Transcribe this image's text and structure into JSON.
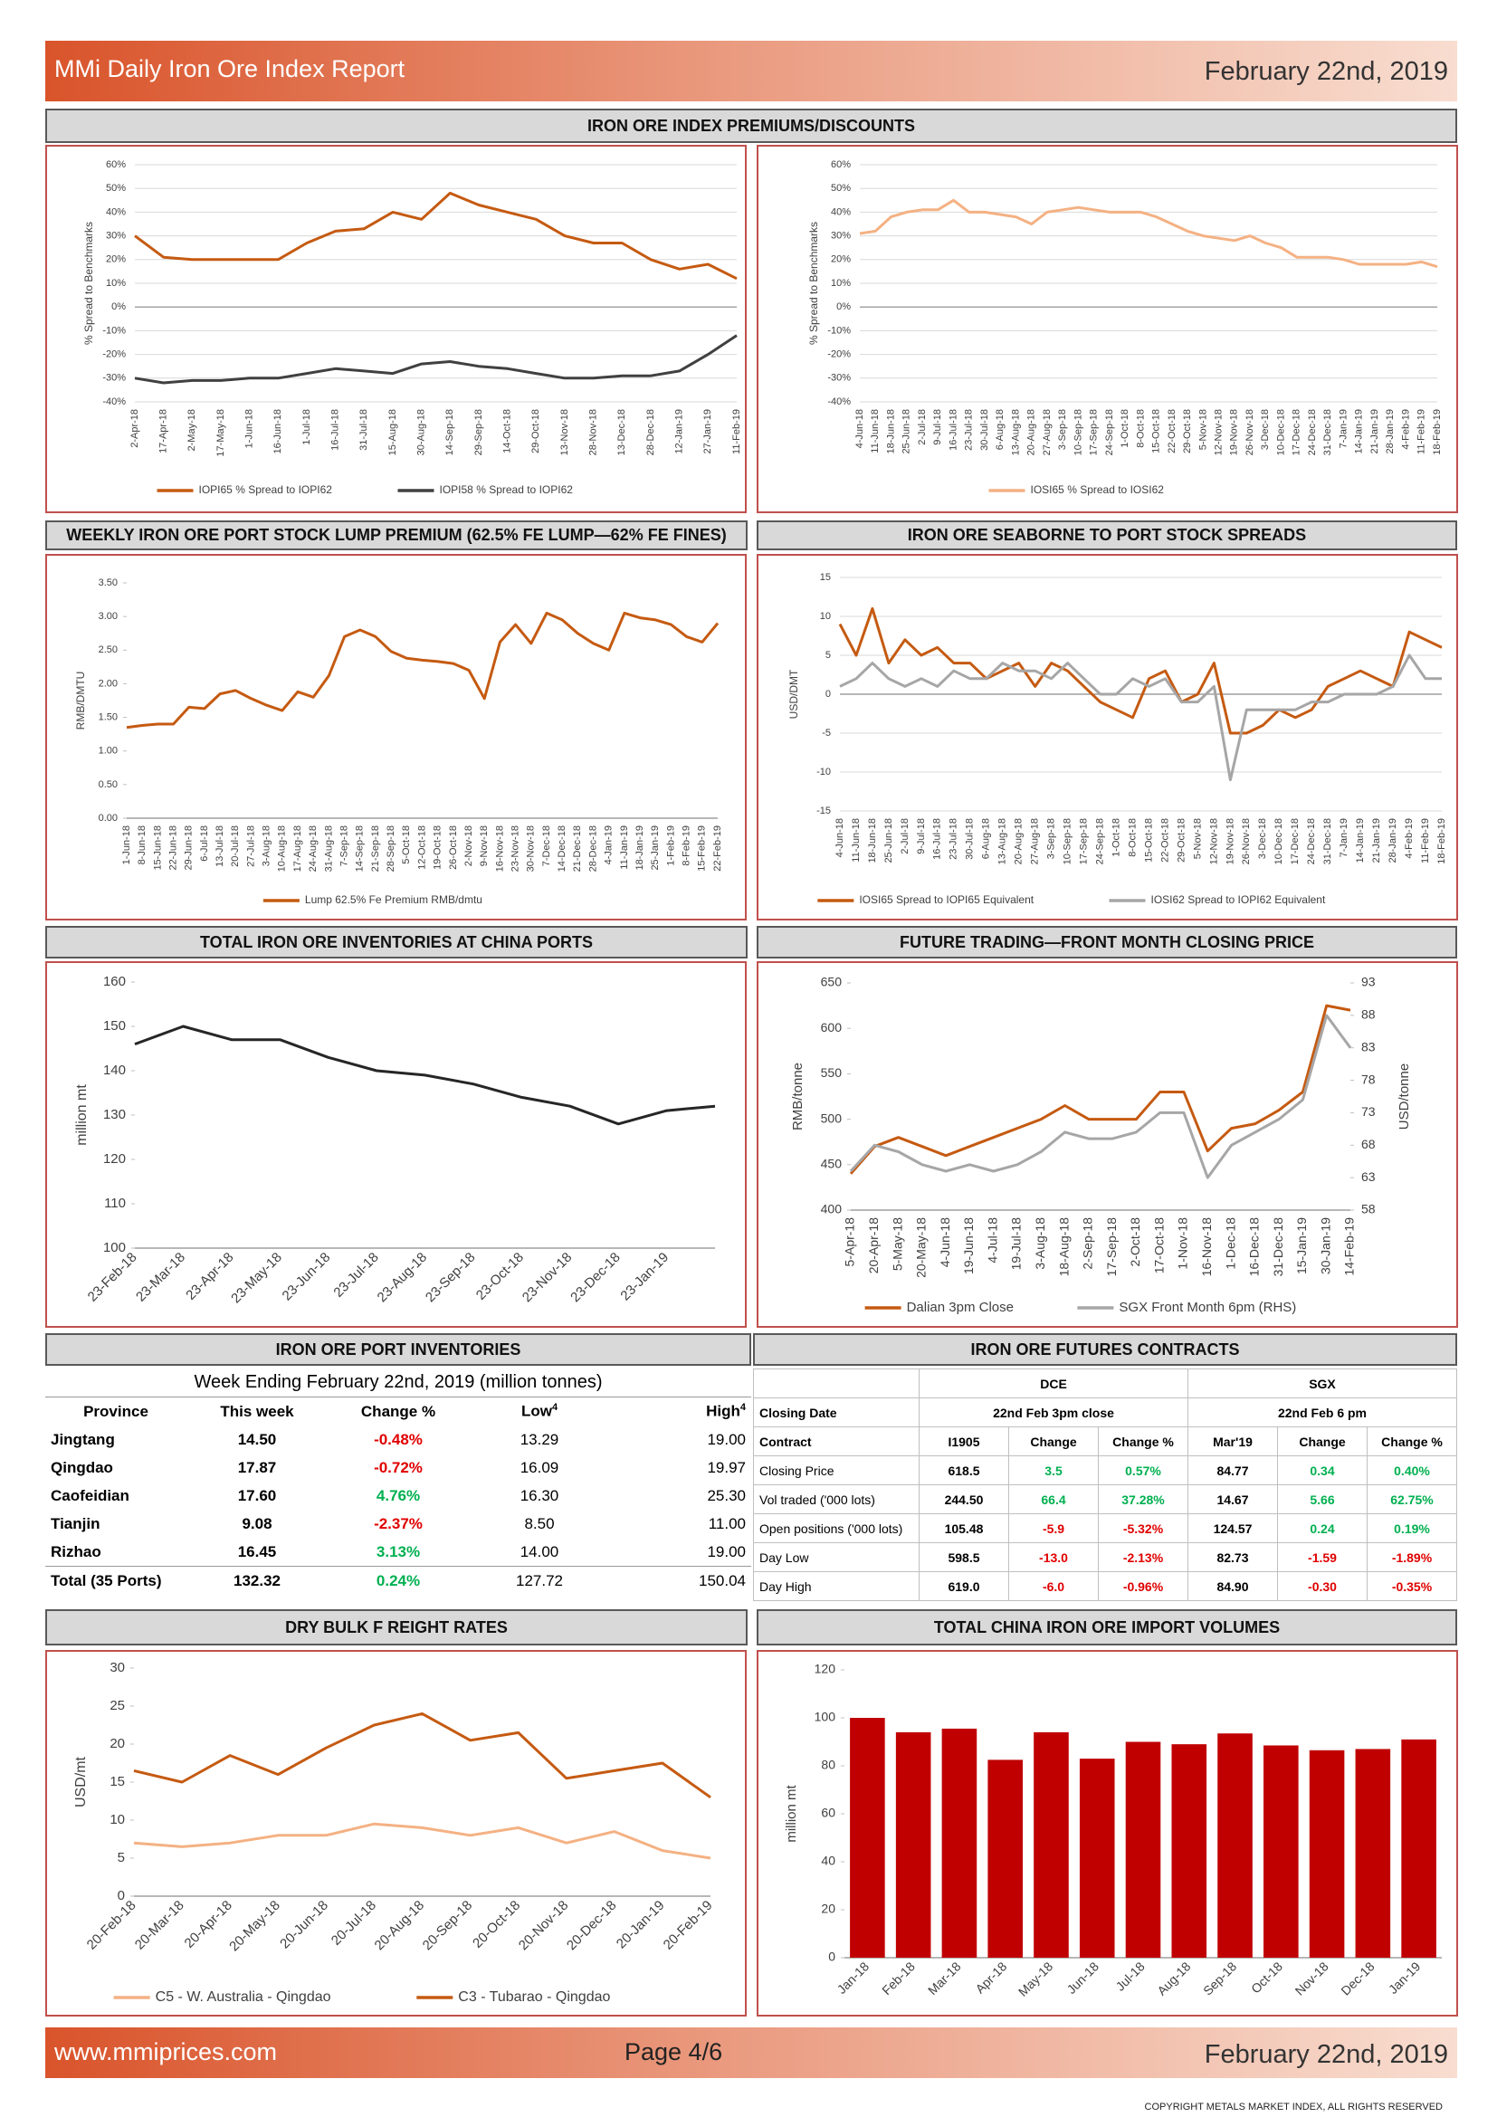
{
  "header": {
    "title": "MMi Daily Iron Ore Index Report",
    "date": "February 22nd, 2019"
  },
  "banner": "IRON ORE INDEX PREMIUMS/DISCOUNTS",
  "chart_data": [
    {
      "type": "line",
      "ylabel": "% Spread to Benchmarks",
      "grid": true,
      "categories": [
        "2-Apr-18",
        "17-Apr-18",
        "2-May-18",
        "17-May-18",
        "1-Jun-18",
        "16-Jun-18",
        "1-Jul-18",
        "16-Jul-18",
        "31-Jul-18",
        "15-Aug-18",
        "30-Aug-18",
        "14-Sep-18",
        "29-Sep-18",
        "14-Oct-18",
        "29-Oct-18",
        "13-Nov-18",
        "28-Nov-18",
        "13-Dec-18",
        "28-Dec-18",
        "12-Jan-19",
        "27-Jan-19",
        "11-Feb-19"
      ],
      "ylim": [
        -40,
        60
      ],
      "yticks": [
        {
          "value": -40,
          "label": "-40%"
        },
        {
          "value": -30,
          "label": "-30%"
        },
        {
          "value": -20,
          "label": "-20%"
        },
        {
          "value": -10,
          "label": "-10%"
        },
        {
          "value": 0,
          "label": "0%"
        },
        {
          "value": 10,
          "label": "10%"
        },
        {
          "value": 20,
          "label": "20%"
        },
        {
          "value": 30,
          "label": "30%"
        },
        {
          "value": 40,
          "label": "40%"
        },
        {
          "value": 50,
          "label": "50%"
        },
        {
          "value": 60,
          "label": "60%"
        }
      ],
      "series": [
        {
          "name": "IOPI65 % Spread to IOPI62",
          "color": "#c55a11",
          "values": [
            30,
            21,
            20,
            20,
            20,
            20,
            27,
            32,
            33,
            40,
            37,
            48,
            43,
            40,
            37,
            30,
            27,
            27,
            20,
            16,
            18,
            12
          ]
        },
        {
          "name": "IOPI58 % Spread to IOPI62",
          "color": "#404040",
          "values": [
            -30,
            -32,
            -31,
            -31,
            -30,
            -30,
            -28,
            -26,
            -27,
            -28,
            -24,
            -23,
            -25,
            -26,
            -28,
            -30,
            -30,
            -29,
            -29,
            -27,
            -20,
            -12
          ]
        }
      ]
    },
    {
      "type": "line",
      "ylabel": "% Spread to Benchmarks",
      "grid": true,
      "categories": [
        "4-Jun-18",
        "11-Jun-18",
        "18-Jun-18",
        "25-Jun-18",
        "2-Jul-18",
        "9-Jul-18",
        "16-Jul-18",
        "23-Jul-18",
        "30-Jul-18",
        "6-Aug-18",
        "13-Aug-18",
        "20-Aug-18",
        "27-Aug-18",
        "3-Sep-18",
        "10-Sep-18",
        "17-Sep-18",
        "24-Sep-18",
        "1-Oct-18",
        "8-Oct-18",
        "15-Oct-18",
        "22-Oct-18",
        "29-Oct-18",
        "5-Nov-18",
        "12-Nov-18",
        "19-Nov-18",
        "26-Nov-18",
        "3-Dec-18",
        "10-Dec-18",
        "17-Dec-18",
        "24-Dec-18",
        "31-Dec-18",
        "7-Jan-19",
        "14-Jan-19",
        "21-Jan-19",
        "28-Jan-19",
        "4-Feb-19",
        "11-Feb-19",
        "18-Feb-19"
      ],
      "ylim": [
        -40,
        60
      ],
      "yticks": [
        {
          "value": -40,
          "label": "-40%"
        },
        {
          "value": -30,
          "label": "-30%"
        },
        {
          "value": -20,
          "label": "-20%"
        },
        {
          "value": -10,
          "label": "-10%"
        },
        {
          "value": 0,
          "label": "0%"
        },
        {
          "value": 10,
          "label": "10%"
        },
        {
          "value": 20,
          "label": "20%"
        },
        {
          "value": 30,
          "label": "30%"
        },
        {
          "value": 40,
          "label": "40%"
        },
        {
          "value": 50,
          "label": "50%"
        },
        {
          "value": 60,
          "label": "60%"
        }
      ],
      "series": [
        {
          "name": "IOSI65 % Spread to IOSI62",
          "color": "#f4b183",
          "values": [
            31,
            32,
            38,
            40,
            41,
            41,
            45,
            40,
            40,
            39,
            38,
            35,
            40,
            41,
            42,
            41,
            40,
            40,
            40,
            38,
            35,
            32,
            30,
            29,
            28,
            30,
            27,
            25,
            21,
            21,
            21,
            20,
            18,
            18,
            18,
            18,
            19,
            17
          ]
        }
      ]
    },
    {
      "type": "line",
      "title": "WEEKLY IRON ORE PORT STOCK LUMP PREMIUM (62.5% FE LUMP—62% FE FINES)",
      "ylabel": "RMB/DMTU",
      "grid": false,
      "categories": [
        "1-Jun-18",
        "8-Jun-18",
        "15-Jun-18",
        "22-Jun-18",
        "29-Jun-18",
        "6-Jul-18",
        "13-Jul-18",
        "20-Jul-18",
        "27-Jul-18",
        "3-Aug-18",
        "10-Aug-18",
        "17-Aug-18",
        "24-Aug-18",
        "31-Aug-18",
        "7-Sep-18",
        "14-Sep-18",
        "21-Sep-18",
        "28-Sep-18",
        "5-Oct-18",
        "12-Oct-18",
        "19-Oct-18",
        "26-Oct-18",
        "2-Nov-18",
        "9-Nov-18",
        "16-Nov-18",
        "23-Nov-18",
        "30-Nov-18",
        "7-Dec-18",
        "14-Dec-18",
        "21-Dec-18",
        "28-Dec-18",
        "4-Jan-19",
        "11-Jan-19",
        "18-Jan-19",
        "25-Jan-19",
        "1-Feb-19",
        "8-Feb-19",
        "15-Feb-19",
        "22-Feb-19"
      ],
      "ylim": [
        0,
        3.5
      ],
      "yticks": [
        {
          "value": 0,
          "label": "0.00"
        },
        {
          "value": 0.5,
          "label": "0.50"
        },
        {
          "value": 1,
          "label": "1.00"
        },
        {
          "value": 1.5,
          "label": "1.50"
        },
        {
          "value": 2,
          "label": "2.00"
        },
        {
          "value": 2.5,
          "label": "2.50"
        },
        {
          "value": 3,
          "label": "3.00"
        },
        {
          "value": 3.5,
          "label": "3.50"
        }
      ],
      "series": [
        {
          "name": "Lump 62.5% Fe Premium RMB/dmtu",
          "color": "#c55a11",
          "values": [
            1.35,
            1.38,
            1.4,
            1.4,
            1.65,
            1.63,
            1.85,
            1.9,
            1.78,
            1.68,
            1.6,
            1.88,
            1.8,
            2.12,
            2.7,
            2.8,
            2.7,
            2.48,
            2.38,
            2.35,
            2.33,
            2.3,
            2.2,
            1.78,
            2.62,
            2.88,
            2.6,
            3.05,
            2.95,
            2.75,
            2.6,
            2.5,
            3.05,
            2.98,
            2.95,
            2.88,
            2.7,
            2.62,
            2.9
          ]
        }
      ]
    },
    {
      "type": "line",
      "title": "IRON ORE SEABORNE TO PORT STOCK SPREADS",
      "ylabel": "USD/DMT",
      "grid": true,
      "categories": [
        "4-Jun-18",
        "11-Jun-18",
        "18-Jun-18",
        "25-Jun-18",
        "2-Jul-18",
        "9-Jul-18",
        "16-Jul-18",
        "23-Jul-18",
        "30-Jul-18",
        "6-Aug-18",
        "13-Aug-18",
        "20-Aug-18",
        "27-Aug-18",
        "3-Sep-18",
        "10-Sep-18",
        "17-Sep-18",
        "24-Sep-18",
        "1-Oct-18",
        "8-Oct-18",
        "15-Oct-18",
        "22-Oct-18",
        "29-Oct-18",
        "5-Nov-18",
        "12-Nov-18",
        "19-Nov-18",
        "26-Nov-18",
        "3-Dec-18",
        "10-Dec-18",
        "17-Dec-18",
        "24-Dec-18",
        "31-Dec-18",
        "7-Jan-19",
        "14-Jan-19",
        "21-Jan-19",
        "28-Jan-19",
        "4-Feb-19",
        "11-Feb-19",
        "18-Feb-19"
      ],
      "ylim": [
        -15,
        15
      ],
      "yticks": [
        -15,
        -10,
        -5,
        0,
        5,
        10,
        15
      ],
      "series": [
        {
          "name": "IOSI65 Spread to IOPI65 Equivalent",
          "color": "#c55a11",
          "values": [
            9,
            5,
            11,
            4,
            7,
            5,
            6,
            4,
            4,
            2,
            3,
            4,
            1,
            4,
            3,
            1,
            -1,
            -2,
            -3,
            2,
            3,
            -1,
            0,
            4,
            -5,
            -5,
            -4,
            -2,
            -3,
            -2,
            1,
            2,
            3,
            2,
            1,
            8,
            7,
            6
          ]
        },
        {
          "name": "IOSI62 Spread to IOPI62 Equivalent",
          "color": "#a6a6a6",
          "values": [
            1,
            2,
            4,
            2,
            1,
            2,
            1,
            3,
            2,
            2,
            4,
            3,
            3,
            2,
            4,
            2,
            0,
            0,
            2,
            1,
            2,
            -1,
            -1,
            1,
            -11,
            -2,
            -2,
            -2,
            -2,
            -1,
            -1,
            0,
            0,
            0,
            1,
            5,
            2,
            2
          ]
        }
      ]
    },
    {
      "type": "line",
      "title": "TOTAL IRON ORE INVENTORIES AT CHINA PORTS",
      "ylabel": "million mt",
      "grid": false,
      "categories": [
        "23-Feb-18",
        "23-Mar-18",
        "23-Apr-18",
        "23-May-18",
        "23-Jun-18",
        "23-Jul-18",
        "23-Aug-18",
        "23-Sep-18",
        "23-Oct-18",
        "23-Nov-18",
        "23-Dec-18",
        "23-Jan-19",
        null
      ],
      "ylim": [
        100,
        160
      ],
      "yticks": [
        100,
        110,
        120,
        130,
        140,
        150,
        160
      ],
      "series": [
        {
          "name": "Total",
          "color": "#262626",
          "values": [
            146,
            150,
            147,
            147,
            143,
            140,
            139,
            137,
            134,
            132,
            128,
            131,
            132
          ]
        }
      ]
    },
    {
      "type": "line",
      "title": "FUTURE TRADING—FRONT MONTH CLOSING PRICE",
      "ylabel": "RMB/tonne",
      "y2label": "USD/tonne",
      "grid": false,
      "categories": [
        "5-Apr-18",
        "20-Apr-18",
        "5-May-18",
        "20-May-18",
        "4-Jun-18",
        "19-Jun-18",
        "4-Jul-18",
        "19-Jul-18",
        "3-Aug-18",
        "18-Aug-18",
        "2-Sep-18",
        "17-Sep-18",
        "2-Oct-18",
        "17-Oct-18",
        "1-Nov-18",
        "16-Nov-18",
        "1-Dec-18",
        "16-Dec-18",
        "31-Dec-18",
        "15-Jan-19",
        "30-Jan-19",
        "14-Feb-19"
      ],
      "ylim": [
        400,
        650
      ],
      "yticks": [
        400,
        450,
        500,
        550,
        600,
        650
      ],
      "y2lim": [
        58,
        93
      ],
      "y2ticks": [
        58,
        63,
        68,
        73,
        78,
        83,
        88,
        93
      ],
      "series": [
        {
          "name": "Dalian 3pm Close",
          "color": "#c55a11",
          "values": [
            440,
            470,
            480,
            470,
            460,
            470,
            480,
            490,
            500,
            515,
            500,
            500,
            500,
            530,
            530,
            465,
            490,
            495,
            510,
            530,
            625,
            620
          ]
        },
        {
          "name": "SGX Front Month 6pm (RHS)",
          "color": "#a6a6a6",
          "axis": "y2",
          "values": [
            64,
            68,
            67,
            65,
            64,
            65,
            64,
            65,
            67,
            70,
            69,
            69,
            70,
            73,
            73,
            63,
            68,
            70,
            72,
            75,
            88,
            83
          ]
        }
      ]
    },
    {
      "type": "line",
      "title": "DRY BULK F REIGHT RATES",
      "ylabel": "USD/mt",
      "grid": false,
      "categories": [
        "20-Feb-18",
        "20-Mar-18",
        "20-Apr-18",
        "20-May-18",
        "20-Jun-18",
        "20-Jul-18",
        "20-Aug-18",
        "20-Sep-18",
        "20-Oct-18",
        "20-Nov-18",
        "20-Dec-18",
        "20-Jan-19",
        "20-Feb-19"
      ],
      "ylim": [
        0,
        30
      ],
      "yticks": [
        0,
        5,
        10,
        15,
        20,
        25,
        30
      ],
      "series": [
        {
          "name": "C5 - W. Australia - Qingdao",
          "color": "#f4b183",
          "values": [
            7,
            6.5,
            7,
            8,
            8,
            9.5,
            9,
            8,
            9,
            7,
            8.5,
            6,
            5
          ]
        },
        {
          "name": "C3 - Tubarao - Qingdao",
          "color": "#c55a11",
          "values": [
            16.5,
            15,
            18.5,
            16,
            19.5,
            22.5,
            24,
            20.5,
            21.5,
            15.5,
            16.5,
            17.5,
            13
          ]
        }
      ]
    },
    {
      "type": "bar",
      "title": "TOTAL CHINA IRON ORE IMPORT VOLUMES",
      "ylabel": "million mt",
      "grid": false,
      "color": "#c00000",
      "categories": [
        "Jan-18",
        "Feb-18",
        "Mar-18",
        "Apr-18",
        "May-18",
        "Jun-18",
        "Jul-18",
        "Aug-18",
        "Sep-18",
        "Oct-18",
        "Nov-18",
        "Dec-18",
        "Jan-19"
      ],
      "values": [
        100,
        94,
        95.5,
        82.5,
        94,
        83,
        90,
        89,
        93.5,
        88.5,
        86.5,
        87,
        91
      ],
      "ylim": [
        0,
        120
      ],
      "yticks": [
        0,
        20,
        40,
        60,
        80,
        100,
        120
      ]
    }
  ],
  "port_table": {
    "title": "IRON ORE PORT INVENTORIES",
    "subtitle": "Week Ending February 22nd, 2019 (million tonnes)",
    "headers": [
      "Province",
      "This week",
      "Change %",
      "Low",
      "High"
    ],
    "header_sup": "4",
    "rows": [
      [
        "Jingtang",
        "14.50",
        "-0.48%",
        "13.29",
        "19.00"
      ],
      [
        "Qingdao",
        "17.87",
        "-0.72%",
        "16.09",
        "19.97"
      ],
      [
        "Caofeidian",
        "17.60",
        "4.76%",
        "16.30",
        "25.30"
      ],
      [
        "Tianjin",
        "9.08",
        "-2.37%",
        "8.50",
        "11.00"
      ],
      [
        "Rizhao",
        "16.45",
        "3.13%",
        "14.00",
        "19.00"
      ],
      [
        "Total (35 Ports)",
        "132.32",
        "0.24%",
        "127.72",
        "150.04"
      ]
    ]
  },
  "futures_table": {
    "title": "IRON ORE FUTURES CONTRACTS",
    "groups": [
      "DCE",
      "SGX"
    ],
    "closing_label": "Closing Date",
    "closing": [
      "22nd Feb 3pm close",
      "22nd Feb 6 pm"
    ],
    "headers": [
      "Contract",
      "I1905",
      "Change",
      "Change %",
      "Mar'19",
      "Change",
      "Change %"
    ],
    "rows": [
      [
        "Closing Price",
        "618.5",
        "3.5",
        "0.57%",
        "84.77",
        "0.34",
        "0.40%"
      ],
      [
        "Vol traded ('000 lots)",
        "244.50",
        "66.4",
        "37.28%",
        "14.67",
        "5.66",
        "62.75%"
      ],
      [
        "Open positions ('000 lots)",
        "105.48",
        "-5.9",
        "-5.32%",
        "124.57",
        "0.24",
        "0.19%"
      ],
      [
        "Day Low",
        "598.5",
        "-13.0",
        "-2.13%",
        "82.73",
        "-1.59",
        "-1.89%"
      ],
      [
        "Day High",
        "619.0",
        "-6.0",
        "-0.96%",
        "84.90",
        "-0.30",
        "-0.35%"
      ]
    ]
  },
  "footer": {
    "url": "www.mmiprices.com",
    "page": "Page 4/6",
    "date": "February 22nd, 2019",
    "copyright": "COPYRIGHT METALS MARKET INDEX, ALL RIGHTS RESERVED"
  }
}
